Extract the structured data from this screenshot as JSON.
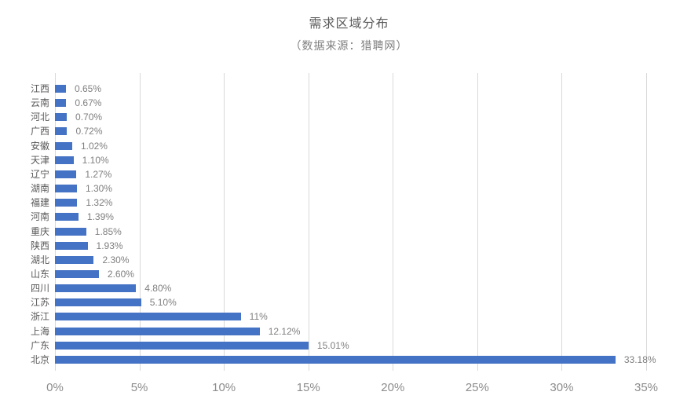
{
  "title": "需求区域分布",
  "subtitle": "（数据来源：猎聘网）",
  "colors": {
    "bar": "#4472C4",
    "gridline": "#D9D9D9",
    "title_text": "#595959",
    "subtitle_text": "#7F7F7F",
    "category_label_text": "#595959",
    "value_label_text": "#7F7F7F",
    "axis_label_text": "#8C8C8C",
    "background": "#FFFFFF"
  },
  "chart_data": {
    "type": "bar",
    "orientation": "horizontal",
    "title": "需求区域分布",
    "subtitle": "（数据来源：猎聘网）",
    "categories_top_to_bottom": [
      "江西",
      "云南",
      "河北",
      "广西",
      "安徽",
      "天津",
      "辽宁",
      "湖南",
      "福建",
      "河南",
      "重庆",
      "陕西",
      "湖北",
      "山东",
      "四川",
      "江苏",
      "浙江",
      "上海",
      "广东",
      "北京"
    ],
    "values": [
      0.65,
      0.67,
      0.7,
      0.72,
      1.02,
      1.1,
      1.27,
      1.3,
      1.32,
      1.39,
      1.85,
      1.93,
      2.3,
      2.6,
      4.8,
      5.1,
      11,
      12.12,
      15.01,
      33.18
    ],
    "value_labels": [
      "0.65%",
      "0.67%",
      "0.70%",
      "0.72%",
      "1.02%",
      "1.10%",
      "1.27%",
      "1.30%",
      "1.32%",
      "1.39%",
      "1.85%",
      "1.93%",
      "2.30%",
      "2.60%",
      "4.80%",
      "5.10%",
      "11%",
      "12.12%",
      "15.01%",
      "33.18%"
    ],
    "x_axis_ticks": [
      "0%",
      "5%",
      "10%",
      "15%",
      "20%",
      "25%",
      "30%",
      "35%"
    ],
    "xlim": [
      0,
      35
    ],
    "grid": "vertical-only",
    "legend": "none",
    "unit": "percent"
  }
}
